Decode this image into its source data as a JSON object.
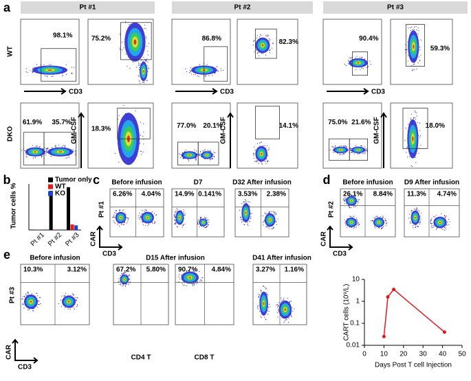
{
  "panel_a": {
    "label": "a",
    "patients": [
      "Pt #1",
      "Pt #2",
      "Pt #3"
    ],
    "row_labels": [
      "WT",
      "DKO"
    ],
    "x_axis_label": "CD3",
    "y_axis_label": "GM-CSF",
    "gates": [
      [
        "98.1%",
        "75.2%",
        "86.8%",
        "82.3%",
        "90.4%",
        "59.3%"
      ],
      [
        "61.9%",
        "35.7%",
        "18.3%",
        "77.0%",
        "20.1%",
        "14.1%",
        "75.0%",
        "21.6%",
        "18.0%"
      ]
    ]
  },
  "panel_b": {
    "label": "b"
  },
  "panel_c": {
    "label": "c",
    "row_label": "Pt #1",
    "x_axis_label": "CD3",
    "y_axis_label": "CAR",
    "plots": [
      {
        "title": "Before infusion",
        "quadrants": [
          "6.26%",
          "4.04%"
        ]
      },
      {
        "title": "D7",
        "quadrants": [
          "14.9%",
          "0.141%"
        ]
      },
      {
        "title": "D32 After infusion",
        "quadrants": [
          "3.53%",
          "2.38%"
        ]
      }
    ]
  },
  "panel_d": {
    "label": "d",
    "row_label": "Pt #2",
    "x_axis_label": "CD3",
    "y_axis_label": "CAR",
    "plots": [
      {
        "title": "Before infusion",
        "quadrants": [
          "26.1%",
          "8.84%"
        ]
      },
      {
        "title": "D9 After infusion",
        "quadrants": [
          "11.3%",
          "4.74%"
        ]
      }
    ]
  },
  "panel_e": {
    "label": "e",
    "row_label": "Pt #3",
    "x_axis_label": "CD3",
    "y_axis_label": "CAR",
    "titles": [
      "Before infusion",
      "D15 After infusion",
      "D41 After infusion"
    ],
    "subset_labels": [
      "CD4 T",
      "CD8 T"
    ],
    "quadrants": [
      [
        "10.3%",
        "3.12%"
      ],
      [
        "67.2%",
        "5.80%"
      ],
      [
        "90.7%",
        "4.84%"
      ],
      [
        "3.27%",
        "1.16%"
      ]
    ]
  },
  "chart_data": [
    {
      "type": "bar",
      "y_label": "Tumor cells %",
      "categories": [
        "Pt #1",
        "Pt #2",
        "Pt #3"
      ],
      "series": [
        {
          "name": "Tumor only",
          "color": "#000000",
          "values": [
            0.5,
            85,
            93
          ]
        },
        {
          "name": "WT",
          "color": "#e41a1c",
          "values": [
            0.3,
            1,
            12
          ]
        },
        {
          "name": "KO",
          "color": "#1f3fd0",
          "values": [
            0.3,
            1,
            10
          ]
        }
      ],
      "ylim": [
        0,
        100
      ],
      "legend": "top-right"
    },
    {
      "type": "line",
      "x_label": "Days Post T cell Injection",
      "y_label": "CART cells (10⁹/L)",
      "x": [
        10,
        12,
        15,
        41
      ],
      "series": [
        {
          "name": "CART cells",
          "color": "#e8141c",
          "values": [
            0.025,
            1.6,
            3.5,
            0.04
          ]
        }
      ],
      "xlim": [
        0,
        50
      ],
      "xticks": [
        0,
        10,
        20,
        30,
        40,
        50
      ],
      "ylim": [
        0.01,
        10
      ],
      "yticks": [
        0.01,
        0.1,
        1,
        10
      ],
      "log_y": true
    }
  ]
}
